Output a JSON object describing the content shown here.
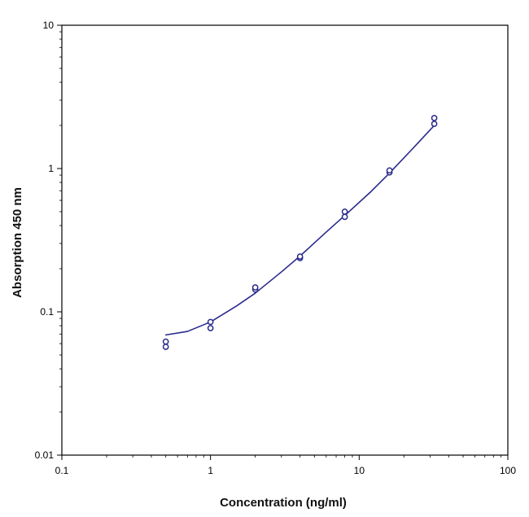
{
  "chart_data": {
    "type": "scatter",
    "title": "",
    "xlabel": "Concentration (ng/ml)",
    "ylabel": "Absorption 450 nm",
    "x_scale": "log",
    "y_scale": "log",
    "xlim": [
      0.1,
      100
    ],
    "ylim": [
      0.01,
      10
    ],
    "x_ticks": [
      0.1,
      1,
      10,
      100
    ],
    "x_tick_labels": [
      "0.1",
      "1",
      "10",
      "100"
    ],
    "y_ticks": [
      0.01,
      0.1,
      1,
      10
    ],
    "y_tick_labels": [
      "0.01",
      "0.1",
      "1",
      "10"
    ],
    "grid": false,
    "legend": "none",
    "series": [
      {
        "kind": "points",
        "marker": "open-circle",
        "points": [
          {
            "x": 0.5,
            "y": 0.057
          },
          {
            "x": 0.5,
            "y": 0.062
          },
          {
            "x": 1,
            "y": 0.077
          },
          {
            "x": 1,
            "y": 0.085
          },
          {
            "x": 2,
            "y": 0.143
          },
          {
            "x": 2,
            "y": 0.148
          },
          {
            "x": 4,
            "y": 0.237
          },
          {
            "x": 4,
            "y": 0.243
          },
          {
            "x": 8,
            "y": 0.46
          },
          {
            "x": 8,
            "y": 0.5
          },
          {
            "x": 16,
            "y": 0.94
          },
          {
            "x": 16,
            "y": 0.97
          },
          {
            "x": 32,
            "y": 2.05
          },
          {
            "x": 32,
            "y": 2.25
          }
        ]
      },
      {
        "kind": "fit-curve",
        "points": [
          {
            "x": 0.5,
            "y": 0.069
          },
          {
            "x": 0.7,
            "y": 0.073
          },
          {
            "x": 1,
            "y": 0.085
          },
          {
            "x": 1.5,
            "y": 0.11
          },
          {
            "x": 2,
            "y": 0.135
          },
          {
            "x": 3,
            "y": 0.19
          },
          {
            "x": 4,
            "y": 0.245
          },
          {
            "x": 6,
            "y": 0.36
          },
          {
            "x": 8,
            "y": 0.47
          },
          {
            "x": 12,
            "y": 0.69
          },
          {
            "x": 16,
            "y": 0.93
          },
          {
            "x": 24,
            "y": 1.45
          },
          {
            "x": 32,
            "y": 2.0
          }
        ]
      }
    ],
    "colors": {
      "series": "#2a2a8c",
      "axes": "#000000"
    }
  }
}
